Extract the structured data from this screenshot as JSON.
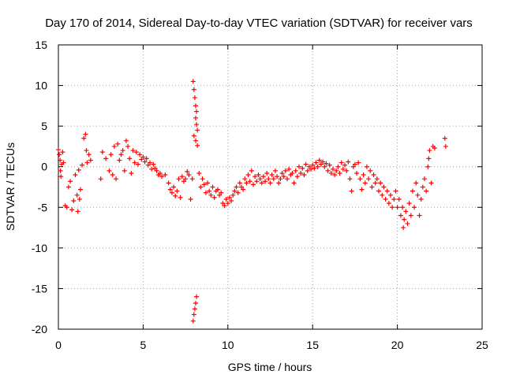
{
  "chart_data": {
    "type": "scatter",
    "title": "Day 170 of 2014, Sidereal Day-to-day VTEC variation (SDTVAR) for receiver vars",
    "xlabel": "GPS time / hours",
    "ylabel": "SDTVAR / TECUs",
    "xlim": [
      0,
      25
    ],
    "ylim": [
      -20,
      15
    ],
    "xticks": [
      0,
      5,
      10,
      15,
      20,
      25
    ],
    "yticks": [
      -20,
      -15,
      -10,
      -5,
      0,
      5,
      10,
      15
    ],
    "grid": true,
    "marker": "+",
    "series_color": "#ff0000",
    "series": [
      {
        "name": "receiver vars",
        "points": [
          [
            0.0,
            2.1
          ],
          [
            0.05,
            1.5
          ],
          [
            0.1,
            0.8
          ],
          [
            0.12,
            -0.5
          ],
          [
            0.15,
            -1.2
          ],
          [
            0.2,
            0.3
          ],
          [
            0.25,
            1.8
          ],
          [
            0.3,
            0.5
          ],
          [
            0.4,
            -4.8
          ],
          [
            0.5,
            -5.0
          ],
          [
            0.6,
            -2.5
          ],
          [
            0.7,
            -1.8
          ],
          [
            0.8,
            -5.3
          ],
          [
            0.9,
            -4.2
          ],
          [
            1.0,
            -1.0
          ],
          [
            1.1,
            -3.5
          ],
          [
            1.15,
            -5.5
          ],
          [
            1.2,
            -0.4
          ],
          [
            1.25,
            -4.0
          ],
          [
            1.3,
            -2.8
          ],
          [
            1.4,
            0.2
          ],
          [
            1.5,
            3.5
          ],
          [
            1.6,
            4.0
          ],
          [
            1.65,
            2.0
          ],
          [
            1.7,
            0.5
          ],
          [
            1.8,
            1.5
          ],
          [
            1.9,
            0.8
          ],
          [
            2.5,
            -1.5
          ],
          [
            2.6,
            1.8
          ],
          [
            2.8,
            1.0
          ],
          [
            3.0,
            -0.5
          ],
          [
            3.1,
            1.5
          ],
          [
            3.2,
            -1.0
          ],
          [
            3.3,
            2.5
          ],
          [
            3.4,
            -1.5
          ],
          [
            3.5,
            2.8
          ],
          [
            3.6,
            0.8
          ],
          [
            3.7,
            1.5
          ],
          [
            3.8,
            2.0
          ],
          [
            3.9,
            -0.5
          ],
          [
            4.0,
            3.2
          ],
          [
            4.1,
            2.5
          ],
          [
            4.2,
            1.0
          ],
          [
            4.3,
            -0.8
          ],
          [
            4.4,
            2.0
          ],
          [
            4.5,
            0.5
          ],
          [
            4.6,
            1.8
          ],
          [
            4.7,
            0.3
          ],
          [
            4.8,
            1.5
          ],
          [
            4.9,
            0.9
          ],
          [
            5.0,
            1.2
          ],
          [
            5.1,
            0.6
          ],
          [
            5.2,
            1.0
          ],
          [
            5.3,
            0.2
          ],
          [
            5.4,
            0.5
          ],
          [
            5.5,
            -0.3
          ],
          [
            5.6,
            0.3
          ],
          [
            5.7,
            -0.2
          ],
          [
            5.8,
            -0.5
          ],
          [
            5.9,
            -1.0
          ],
          [
            6.0,
            -0.8
          ],
          [
            6.1,
            -1.2
          ],
          [
            6.3,
            -1.0
          ],
          [
            6.5,
            -2.0
          ],
          [
            6.6,
            -2.8
          ],
          [
            6.7,
            -3.2
          ],
          [
            6.8,
            -2.5
          ],
          [
            6.9,
            -3.6
          ],
          [
            7.0,
            -3.0
          ],
          [
            7.1,
            -1.5
          ],
          [
            7.2,
            -3.8
          ],
          [
            7.3,
            -1.2
          ],
          [
            7.4,
            -1.8
          ],
          [
            7.5,
            -1.5
          ],
          [
            7.6,
            -0.6
          ],
          [
            7.7,
            -1.0
          ],
          [
            7.8,
            -4.0
          ],
          [
            7.9,
            -1.5
          ],
          [
            7.95,
            10.5
          ],
          [
            8.0,
            9.5
          ],
          [
            8.05,
            8.5
          ],
          [
            8.1,
            7.5
          ],
          [
            8.15,
            6.8
          ],
          [
            8.1,
            6.0
          ],
          [
            8.15,
            5.2
          ],
          [
            8.2,
            4.5
          ],
          [
            8.0,
            3.8
          ],
          [
            8.1,
            3.2
          ],
          [
            8.2,
            2.6
          ],
          [
            7.95,
            -19.0
          ],
          [
            8.0,
            -18.2
          ],
          [
            8.05,
            -17.5
          ],
          [
            8.1,
            -16.8
          ],
          [
            8.15,
            -16.0
          ],
          [
            8.3,
            -0.8
          ],
          [
            8.4,
            -2.5
          ],
          [
            8.5,
            -1.5
          ],
          [
            8.6,
            -2.2
          ],
          [
            8.7,
            -3.2
          ],
          [
            8.8,
            -2.0
          ],
          [
            8.9,
            -3.0
          ],
          [
            9.0,
            -3.5
          ],
          [
            9.1,
            -2.5
          ],
          [
            9.2,
            -3.8
          ],
          [
            9.3,
            -3.0
          ],
          [
            9.4,
            -2.8
          ],
          [
            9.5,
            -3.5
          ],
          [
            9.6,
            -3.2
          ],
          [
            9.7,
            -4.5
          ],
          [
            9.8,
            -4.8
          ],
          [
            9.9,
            -4.0
          ],
          [
            10.0,
            -4.5
          ],
          [
            10.1,
            -3.8
          ],
          [
            10.2,
            -4.2
          ],
          [
            10.3,
            -3.5
          ],
          [
            10.4,
            -3.0
          ],
          [
            10.5,
            -2.5
          ],
          [
            10.6,
            -3.2
          ],
          [
            10.7,
            -2.0
          ],
          [
            10.8,
            -2.5
          ],
          [
            10.9,
            -2.8
          ],
          [
            11.0,
            -1.5
          ],
          [
            11.1,
            -2.0
          ],
          [
            11.2,
            -1.0
          ],
          [
            11.3,
            -1.8
          ],
          [
            11.4,
            -0.5
          ],
          [
            11.5,
            -2.2
          ],
          [
            11.6,
            -1.2
          ],
          [
            11.7,
            -1.8
          ],
          [
            11.8,
            -1.0
          ],
          [
            11.9,
            -1.5
          ],
          [
            12.0,
            -2.0
          ],
          [
            12.1,
            -1.2
          ],
          [
            12.2,
            -1.8
          ],
          [
            12.3,
            -0.8
          ],
          [
            12.4,
            -1.5
          ],
          [
            12.5,
            -2.0
          ],
          [
            12.6,
            -1.0
          ],
          [
            12.7,
            -1.5
          ],
          [
            12.8,
            -0.5
          ],
          [
            12.9,
            -1.2
          ],
          [
            13.0,
            -2.0
          ],
          [
            13.1,
            -1.5
          ],
          [
            13.2,
            -0.8
          ],
          [
            13.3,
            -1.2
          ],
          [
            13.4,
            -0.5
          ],
          [
            13.5,
            -1.5
          ],
          [
            13.6,
            -0.3
          ],
          [
            13.7,
            -1.0
          ],
          [
            13.8,
            -0.8
          ],
          [
            13.9,
            -2.0
          ],
          [
            14.0,
            -0.5
          ],
          [
            14.1,
            -1.2
          ],
          [
            14.2,
            0.0
          ],
          [
            14.3,
            -0.8
          ],
          [
            14.4,
            -0.2
          ],
          [
            14.5,
            -1.0
          ],
          [
            14.6,
            0.3
          ],
          [
            14.7,
            -0.5
          ],
          [
            14.8,
            0.0
          ],
          [
            14.9,
            -0.3
          ],
          [
            15.0,
            0.2
          ],
          [
            15.1,
            -0.2
          ],
          [
            15.2,
            0.5
          ],
          [
            15.3,
            0.0
          ],
          [
            15.4,
            0.8
          ],
          [
            15.5,
            0.3
          ],
          [
            15.6,
            0.6
          ],
          [
            15.7,
            0.0
          ],
          [
            15.8,
            0.4
          ],
          [
            15.9,
            -0.5
          ],
          [
            16.0,
            0.2
          ],
          [
            16.1,
            -0.8
          ],
          [
            16.2,
            -0.3
          ],
          [
            16.3,
            -1.0
          ],
          [
            16.4,
            -0.5
          ],
          [
            16.5,
            0.0
          ],
          [
            16.6,
            -0.8
          ],
          [
            16.7,
            0.5
          ],
          [
            16.8,
            -0.3
          ],
          [
            16.9,
            0.2
          ],
          [
            17.0,
            -0.5
          ],
          [
            17.1,
            0.6
          ],
          [
            17.2,
            -1.5
          ],
          [
            17.3,
            -3.0
          ],
          [
            17.4,
            0.0
          ],
          [
            17.5,
            0.3
          ],
          [
            17.6,
            -0.8
          ],
          [
            17.7,
            0.5
          ],
          [
            17.8,
            -1.5
          ],
          [
            17.9,
            -2.8
          ],
          [
            18.0,
            -1.0
          ],
          [
            18.1,
            -2.0
          ],
          [
            18.2,
            0.0
          ],
          [
            18.3,
            -1.5
          ],
          [
            18.4,
            -0.5
          ],
          [
            18.5,
            -2.5
          ],
          [
            18.6,
            -1.0
          ],
          [
            18.7,
            -2.0
          ],
          [
            18.8,
            -1.5
          ],
          [
            18.9,
            -3.0
          ],
          [
            19.0,
            -2.0
          ],
          [
            19.1,
            -3.5
          ],
          [
            19.2,
            -2.5
          ],
          [
            19.3,
            -4.0
          ],
          [
            19.4,
            -3.0
          ],
          [
            19.5,
            -4.5
          ],
          [
            19.6,
            -3.5
          ],
          [
            19.7,
            -5.0
          ],
          [
            19.8,
            -4.0
          ],
          [
            19.9,
            -3.0
          ],
          [
            20.0,
            -5.0
          ],
          [
            20.1,
            -4.0
          ],
          [
            20.2,
            -6.0
          ],
          [
            20.3,
            -5.0
          ],
          [
            20.35,
            -7.5
          ],
          [
            20.4,
            -6.5
          ],
          [
            20.5,
            -5.5
          ],
          [
            20.6,
            -7.0
          ],
          [
            20.7,
            -4.5
          ],
          [
            20.8,
            -6.0
          ],
          [
            20.9,
            -3.0
          ],
          [
            21.0,
            -5.0
          ],
          [
            21.1,
            -2.0
          ],
          [
            21.2,
            -3.5
          ],
          [
            21.3,
            -6.0
          ],
          [
            21.4,
            -4.0
          ],
          [
            21.5,
            -2.5
          ],
          [
            21.6,
            -1.5
          ],
          [
            21.7,
            -3.0
          ],
          [
            21.8,
            0.0
          ],
          [
            21.85,
            1.0
          ],
          [
            21.9,
            2.0
          ],
          [
            22.0,
            -2.0
          ],
          [
            22.1,
            2.5
          ],
          [
            22.2,
            2.3
          ],
          [
            22.8,
            3.5
          ],
          [
            22.85,
            2.5
          ]
        ]
      }
    ]
  }
}
